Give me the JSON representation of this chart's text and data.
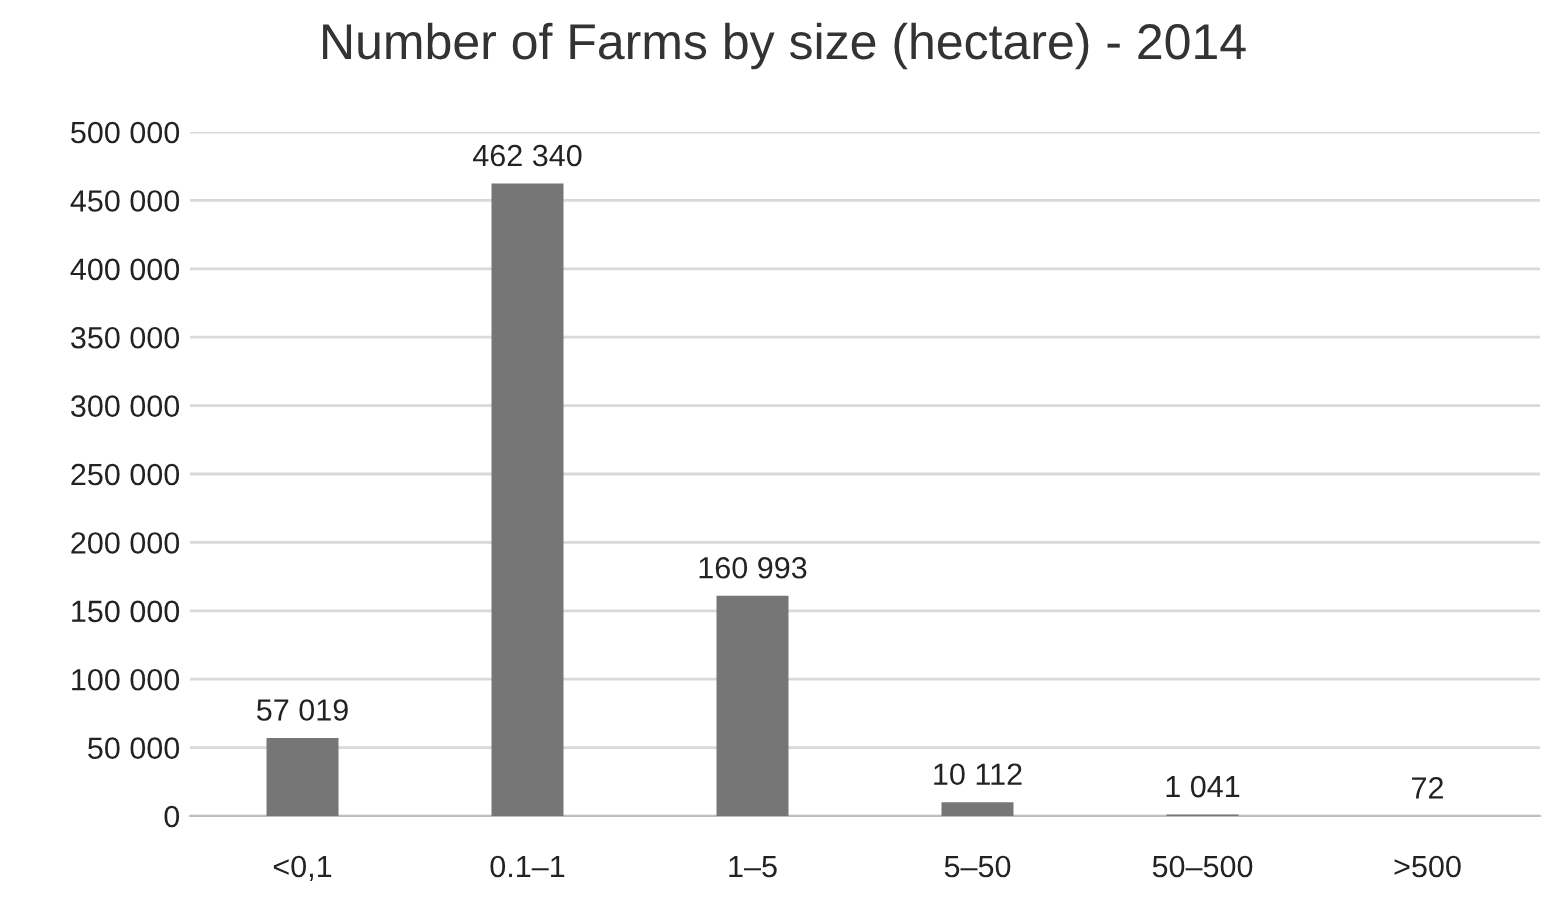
{
  "chart_data": {
    "type": "bar",
    "title": "Number of Farms by size (hectare) - 2014",
    "categories": [
      "<0,1",
      "0.1–1",
      "1–5",
      "5–50",
      "50–500",
      ">500"
    ],
    "values": [
      57019,
      462340,
      160993,
      10112,
      1041,
      72
    ],
    "value_labels": [
      "57 019",
      "462 340",
      "160 993",
      "10 112",
      "1 041",
      "72"
    ],
    "color": "#767676",
    "ylim": [
      0,
      500000
    ],
    "yticks": [
      {
        "value": 0,
        "label": "0"
      },
      {
        "value": 50000,
        "label": "50 000"
      },
      {
        "value": 100000,
        "label": "100 000"
      },
      {
        "value": 150000,
        "label": "150 000"
      },
      {
        "value": 200000,
        "label": "200 000"
      },
      {
        "value": 250000,
        "label": "250 000"
      },
      {
        "value": 300000,
        "label": "300 000"
      },
      {
        "value": 350000,
        "label": "350 000"
      },
      {
        "value": 400000,
        "label": "400 000"
      },
      {
        "value": 450000,
        "label": "450 000"
      },
      {
        "value": 500000,
        "label": "500 000"
      }
    ],
    "grid": "y"
  }
}
